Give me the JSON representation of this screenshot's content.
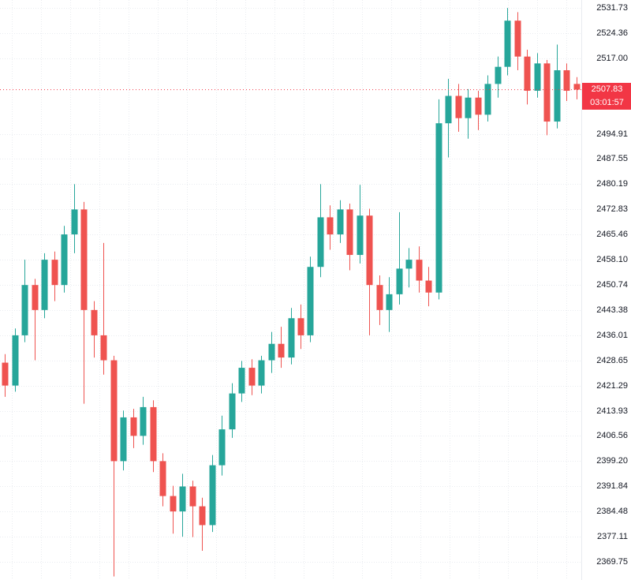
{
  "chart_data": {
    "type": "candlestick",
    "title": "",
    "up_color": "#26a69a",
    "down_color": "#ef5350",
    "background_color": "#ffffff",
    "grid_color": "#e9ecf0",
    "axis_text_color": "#131722",
    "price_line_color": "#f23645",
    "axis_border_color": "#e8ebef",
    "badge": {
      "price": "2507.83",
      "countdown": "03:01:57",
      "bg_color": "#f23645",
      "text_color": "#ffffff"
    },
    "y_axis": {
      "top_price": 2534.04,
      "bottom_price": 2364.45,
      "labels": [
        "2531.73",
        "2524.36",
        "2517.00",
        "2494.91",
        "2487.55",
        "2480.19",
        "2472.83",
        "2465.46",
        "2458.10",
        "2450.74",
        "2443.38",
        "2436.01",
        "2428.65",
        "2421.29",
        "2413.93",
        "2406.56",
        "2399.20",
        "2391.84",
        "2384.48",
        "2377.11",
        "2369.75"
      ]
    },
    "grid": {
      "v_start": 15,
      "v_spacing": 37
    },
    "candles": [
      [
        2428.0,
        2430.5,
        2418.0,
        2421.3
      ],
      [
        2421.3,
        2438.0,
        2419.5,
        2436.0
      ],
      [
        2436.0,
        2458.1,
        2434.0,
        2450.7
      ],
      [
        2450.7,
        2452.5,
        2428.7,
        2443.4
      ],
      [
        2443.4,
        2460.0,
        2441.0,
        2458.1
      ],
      [
        2458.1,
        2460.5,
        2446.0,
        2450.7
      ],
      [
        2450.7,
        2468.0,
        2448.5,
        2465.5
      ],
      [
        2465.5,
        2480.2,
        2460.0,
        2472.8
      ],
      [
        2472.8,
        2475.0,
        2416.0,
        2443.4
      ],
      [
        2443.4,
        2446.0,
        2429.5,
        2436.0
      ],
      [
        2436.0,
        2463.0,
        2424.5,
        2428.7
      ],
      [
        2428.7,
        2430.0,
        2365.5,
        2399.2
      ],
      [
        2399.2,
        2414.0,
        2396.5,
        2412.0
      ],
      [
        2412.0,
        2414.5,
        2403.0,
        2406.6
      ],
      [
        2406.6,
        2418.0,
        2404.0,
        2415.0
      ],
      [
        2415.0,
        2417.0,
        2396.0,
        2399.2
      ],
      [
        2399.2,
        2401.5,
        2386.0,
        2389.0
      ],
      [
        2389.0,
        2392.0,
        2378.0,
        2384.5
      ],
      [
        2384.5,
        2395.5,
        2377.1,
        2391.8
      ],
      [
        2391.8,
        2393.5,
        2377.0,
        2386.0
      ],
      [
        2386.0,
        2388.5,
        2373.0,
        2380.5
      ],
      [
        2380.5,
        2401.0,
        2378.5,
        2398.0
      ],
      [
        2398.0,
        2412.5,
        2395.0,
        2408.5
      ],
      [
        2408.5,
        2422.0,
        2406.0,
        2419.0
      ],
      [
        2419.0,
        2428.5,
        2416.5,
        2426.5
      ],
      [
        2426.5,
        2429.0,
        2418.5,
        2421.3
      ],
      [
        2421.3,
        2430.0,
        2419.0,
        2428.7
      ],
      [
        2428.7,
        2437.0,
        2425.0,
        2433.5
      ],
      [
        2433.5,
        2438.5,
        2426.5,
        2429.5
      ],
      [
        2429.5,
        2444.0,
        2427.5,
        2441.0
      ],
      [
        2441.0,
        2445.0,
        2432.0,
        2436.0
      ],
      [
        2436.0,
        2459.0,
        2434.0,
        2456.0
      ],
      [
        2456.0,
        2480.2,
        2453.0,
        2470.5
      ],
      [
        2470.5,
        2474.0,
        2461.0,
        2465.5
      ],
      [
        2465.5,
        2475.5,
        2463.0,
        2472.8
      ],
      [
        2472.8,
        2474.5,
        2455.0,
        2459.5
      ],
      [
        2459.5,
        2480.0,
        2457.0,
        2471.0
      ],
      [
        2471.0,
        2473.0,
        2436.0,
        2450.7
      ],
      [
        2450.7,
        2453.5,
        2439.0,
        2443.4
      ],
      [
        2443.4,
        2453.0,
        2437.0,
        2448.0
      ],
      [
        2448.0,
        2472.0,
        2445.0,
        2455.5
      ],
      [
        2455.5,
        2461.5,
        2450.0,
        2458.1
      ],
      [
        2458.1,
        2462.0,
        2448.5,
        2452.0
      ],
      [
        2452.0,
        2456.0,
        2444.5,
        2448.5
      ],
      [
        2448.5,
        2505.0,
        2446.5,
        2498.0
      ],
      [
        2498.0,
        2511.0,
        2488.0,
        2506.0
      ],
      [
        2506.0,
        2509.5,
        2495.5,
        2499.5
      ],
      [
        2499.5,
        2508.0,
        2493.5,
        2505.5
      ],
      [
        2505.5,
        2507.5,
        2496.0,
        2500.5
      ],
      [
        2500.5,
        2512.0,
        2498.5,
        2509.5
      ],
      [
        2509.5,
        2517.5,
        2505.5,
        2514.5
      ],
      [
        2514.5,
        2531.7,
        2512.0,
        2528.0
      ],
      [
        2528.0,
        2530.5,
        2513.5,
        2517.5
      ],
      [
        2517.5,
        2519.5,
        2503.5,
        2507.5
      ],
      [
        2507.5,
        2518.5,
        2505.5,
        2515.5
      ],
      [
        2515.5,
        2516.5,
        2494.5,
        2498.5
      ],
      [
        2498.5,
        2521.0,
        2496.5,
        2513.5
      ],
      [
        2513.5,
        2515.5,
        2504.5,
        2507.5
      ],
      [
        2509.5,
        2511.5,
        2505.0,
        2507.83
      ]
    ]
  }
}
